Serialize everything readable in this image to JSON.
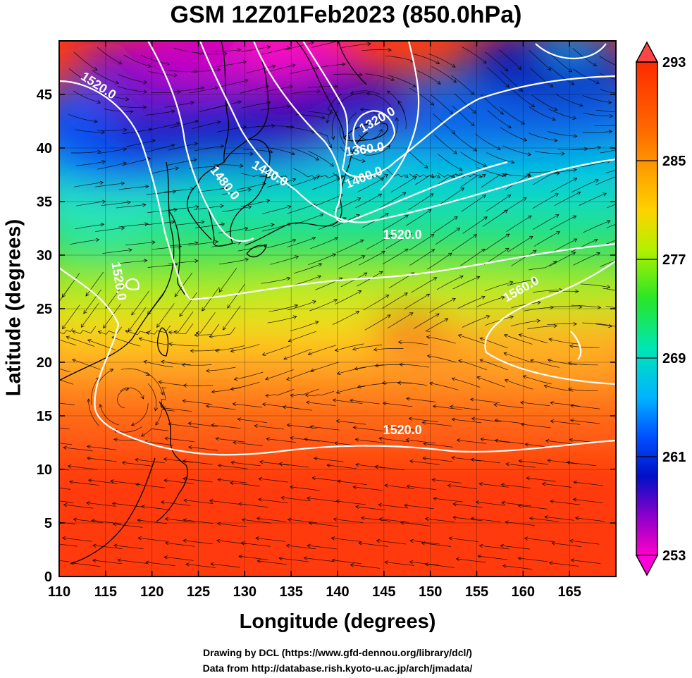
{
  "title": "GSM 12Z01Feb2023 (850.0hPa)",
  "axes": {
    "xlabel": "Longitude (degrees)",
    "ylabel": "Latitude  (degrees)",
    "xlim": [
      110,
      170
    ],
    "ylim": [
      0,
      50
    ],
    "xticks": [
      "110",
      "115",
      "120",
      "125",
      "130",
      "135",
      "140",
      "145",
      "150",
      "155",
      "160",
      "165"
    ],
    "yticks": [
      "0",
      "5",
      "10",
      "15",
      "20",
      "25",
      "30",
      "35",
      "40",
      "45"
    ]
  },
  "colorbar": {
    "min": 253,
    "max": 293,
    "labels": [
      "293",
      "285",
      "277",
      "269",
      "261",
      "253"
    ],
    "colors": [
      "#ff2a00",
      "#ff8c00",
      "#ffd200",
      "#d6f500",
      "#3ce61e",
      "#00e6b4",
      "#00c8ff",
      "#0064ff",
      "#0010cc",
      "#8c00cc",
      "#ff00c8"
    ]
  },
  "contours": {
    "labels": [
      {
        "text": "1520.0",
        "lon": 114.0,
        "lat": 45.5,
        "rot": 33
      },
      {
        "text": "1480.0",
        "lon": 127.5,
        "lat": 36.5,
        "rot": 52
      },
      {
        "text": "1440.0",
        "lon": 132.5,
        "lat": 37.3,
        "rot": 30
      },
      {
        "text": "1400.0",
        "lon": 143.0,
        "lat": 36.9,
        "rot": -22
      },
      {
        "text": "1360.0",
        "lon": 143.0,
        "lat": 39.5,
        "rot": -8
      },
      {
        "text": "1320.0",
        "lon": 144.5,
        "lat": 42.3,
        "rot": -30
      },
      {
        "text": "1520.0",
        "lon": 147.0,
        "lat": 31.5,
        "rot": 0
      },
      {
        "text": "1520.0",
        "lon": 116.0,
        "lat": 27.5,
        "rot": 80
      },
      {
        "text": "1560.0",
        "lon": 160.0,
        "lat": 26.5,
        "rot": -30
      },
      {
        "text": "1520.0",
        "lon": 147.0,
        "lat": 13.3,
        "rot": 0
      }
    ]
  },
  "credits": [
    "Drawing by DCL (https://www.gfd-dennou.org/library/dcl/)",
    "Data from http://database.rish.kyoto-u.ac.jp/arch/jmadata/"
  ]
}
